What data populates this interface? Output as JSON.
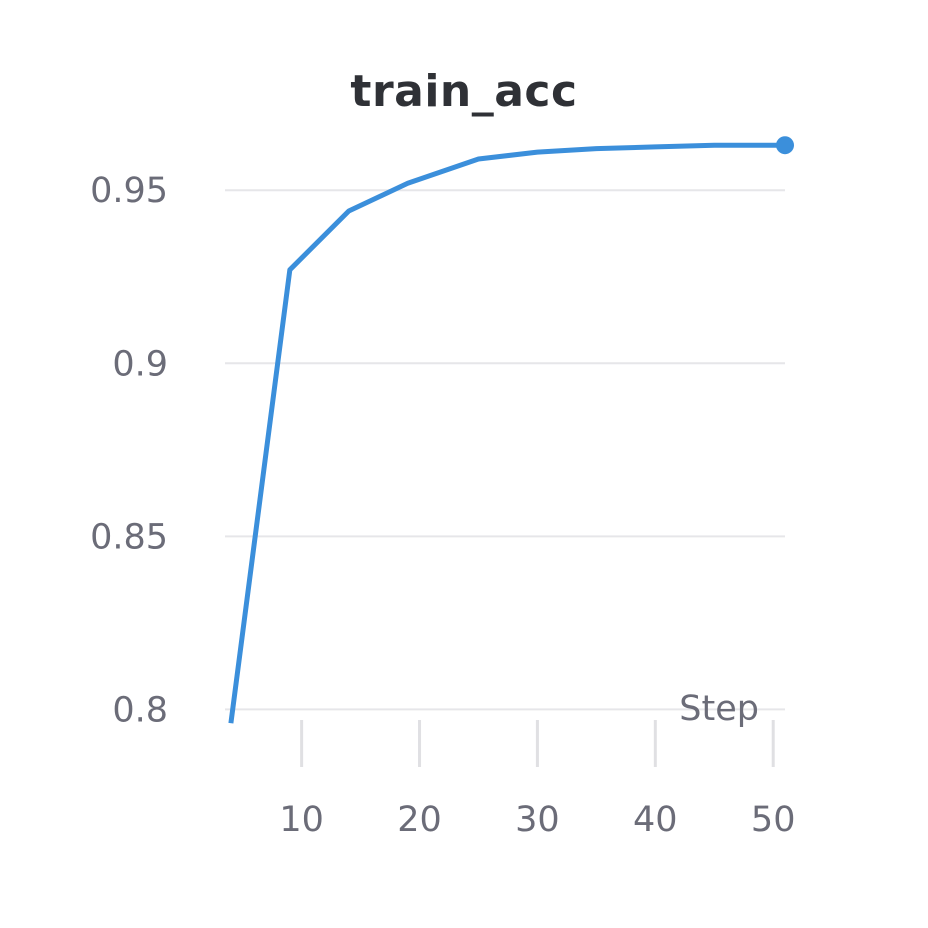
{
  "chart_data": {
    "type": "line",
    "title": "train_acc",
    "xlabel": "Step",
    "ylabel": "",
    "xlim": [
      3.5,
      51
    ],
    "ylim": [
      0.79,
      0.9645
    ],
    "x_ticks": [
      10,
      20,
      30,
      40,
      50
    ],
    "x_tick_labels": [
      "10",
      "20",
      "30",
      "40",
      "50"
    ],
    "y_ticks": [
      0.8,
      0.85,
      0.9,
      0.95
    ],
    "y_tick_labels": [
      "0.8",
      "0.85",
      "0.9",
      "0.95"
    ],
    "grid": "horizontal",
    "legend": "none",
    "series": [
      {
        "color": "#3b8fdb",
        "x": [
          4,
          9,
          14,
          19,
          25,
          30,
          35,
          40,
          45,
          51
        ],
        "y": [
          0.796,
          0.927,
          0.944,
          0.952,
          0.959,
          0.961,
          0.962,
          0.9625,
          0.963,
          0.963
        ]
      }
    ]
  }
}
